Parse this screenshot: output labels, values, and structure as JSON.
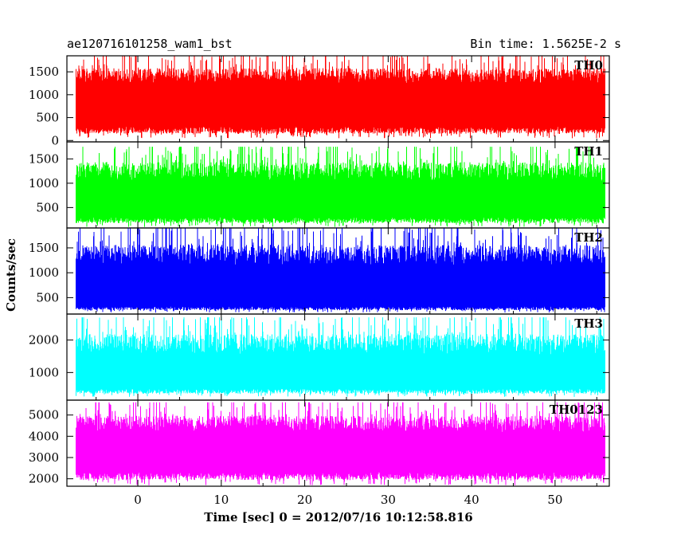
{
  "header": {
    "title": "ae120716101258_wam1_bst",
    "bin_time": "Bin time: 1.5625E-2 s"
  },
  "chart_data": {
    "type": "line",
    "title": "ae120716101258_wam1_bst",
    "subtitle": "Bin time: 1.5625E-2 s",
    "xlabel": "Time [sec] 0 = 2012/07/16 10:12:58.816",
    "ylabel": "Counts/sec",
    "xlim": [
      -8.5,
      56.5
    ],
    "data_range": [
      -7.4,
      56
    ],
    "x_ticks": [
      "0",
      "10",
      "20",
      "30",
      "40",
      "50"
    ],
    "x_tick_values": [
      0,
      10,
      20,
      30,
      40,
      50
    ],
    "grid": false,
    "panels": [
      {
        "name": "TH0",
        "color": "#ff0000",
        "ylim": [
          -30,
          1850
        ],
        "y_ticks": [
          "0",
          "500",
          "1000",
          "1500"
        ],
        "y_tick_values": [
          0,
          500,
          1000,
          1500
        ],
        "band": [
          300,
          1250
        ],
        "peak": [
          1000,
          1850
        ],
        "trough": [
          50,
          220
        ]
      },
      {
        "name": "TH1",
        "color": "#00ff00",
        "ylim": [
          80,
          1850
        ],
        "y_ticks": [
          "500",
          "1000",
          "1500"
        ],
        "y_tick_values": [
          500,
          1000,
          1500
        ],
        "band": [
          300,
          1050
        ],
        "peak": [
          900,
          1750
        ],
        "trough": [
          100,
          220
        ]
      },
      {
        "name": "TH2",
        "color": "#0000ff",
        "ylim": [
          170,
          1900
        ],
        "y_ticks": [
          "500",
          "1000",
          "1500"
        ],
        "y_tick_values": [
          500,
          1000,
          1500
        ],
        "band": [
          320,
          1150
        ],
        "peak": [
          1000,
          1900
        ],
        "trough": [
          200,
          300
        ]
      },
      {
        "name": "TH3",
        "color": "#00ffff",
        "ylim": [
          150,
          2800
        ],
        "y_ticks": [
          "1000",
          "2000"
        ],
        "y_tick_values": [
          1000,
          2000
        ],
        "band": [
          500,
          1550
        ],
        "peak": [
          1400,
          2700
        ],
        "trough": [
          250,
          450
        ]
      },
      {
        "name": "TH0123",
        "color": "#ff00ff",
        "ylim": [
          1650,
          5700
        ],
        "y_ticks": [
          "2000",
          "3000",
          "4000",
          "5000"
        ],
        "y_tick_values": [
          2000,
          3000,
          4000,
          5000
        ],
        "band": [
          2300,
          4200
        ],
        "peak": [
          3800,
          5600
        ],
        "trough": [
          1700,
          2100
        ]
      }
    ]
  }
}
